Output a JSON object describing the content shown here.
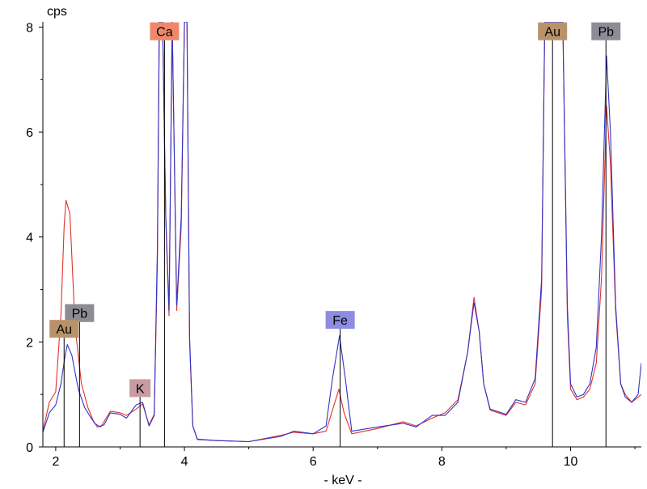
{
  "chart_data": {
    "type": "line",
    "title": "",
    "xlabel": "- keV -",
    "ylabel": "cps",
    "xlim": [
      1.8,
      11.1
    ],
    "ylim": [
      0,
      8.1
    ],
    "x_ticks": [
      2,
      4,
      6,
      8,
      10
    ],
    "y_ticks": [
      0,
      2,
      4,
      6,
      8
    ],
    "grid": false,
    "series": [
      {
        "color": "#e0302a",
        "points": [
          [
            1.8,
            0.3
          ],
          [
            1.9,
            0.85
          ],
          [
            2.0,
            1.05
          ],
          [
            2.08,
            2.5
          ],
          [
            2.13,
            4.2
          ],
          [
            2.16,
            4.7
          ],
          [
            2.22,
            4.45
          ],
          [
            2.3,
            2.3
          ],
          [
            2.4,
            1.2
          ],
          [
            2.5,
            0.75
          ],
          [
            2.6,
            0.45
          ],
          [
            2.7,
            0.38
          ],
          [
            2.85,
            0.68
          ],
          [
            3.0,
            0.65
          ],
          [
            3.1,
            0.6
          ],
          [
            3.25,
            0.72
          ],
          [
            3.35,
            0.82
          ],
          [
            3.45,
            0.42
          ],
          [
            3.53,
            0.62
          ],
          [
            3.58,
            3.5
          ],
          [
            3.61,
            8.1
          ],
          [
            3.66,
            8.1
          ],
          [
            3.71,
            4.3
          ],
          [
            3.76,
            2.5
          ],
          [
            3.81,
            8.1
          ],
          [
            3.88,
            2.6
          ],
          [
            3.95,
            4.2
          ],
          [
            4.0,
            8.1
          ],
          [
            4.04,
            8.1
          ],
          [
            4.08,
            2.0
          ],
          [
            4.13,
            0.4
          ],
          [
            4.2,
            0.15
          ],
          [
            4.5,
            0.12
          ],
          [
            5.0,
            0.1
          ],
          [
            5.5,
            0.22
          ],
          [
            5.7,
            0.28
          ],
          [
            6.0,
            0.25
          ],
          [
            6.2,
            0.3
          ],
          [
            6.3,
            0.7
          ],
          [
            6.4,
            1.1
          ],
          [
            6.48,
            0.65
          ],
          [
            6.6,
            0.25
          ],
          [
            7.0,
            0.35
          ],
          [
            7.4,
            0.48
          ],
          [
            7.6,
            0.4
          ],
          [
            7.85,
            0.55
          ],
          [
            8.05,
            0.65
          ],
          [
            8.25,
            0.9
          ],
          [
            8.4,
            1.8
          ],
          [
            8.5,
            2.85
          ],
          [
            8.58,
            2.2
          ],
          [
            8.65,
            1.2
          ],
          [
            8.75,
            0.7
          ],
          [
            9.0,
            0.6
          ],
          [
            9.15,
            0.85
          ],
          [
            9.3,
            0.8
          ],
          [
            9.45,
            1.2
          ],
          [
            9.55,
            3.0
          ],
          [
            9.6,
            8.1
          ],
          [
            9.88,
            8.1
          ],
          [
            9.95,
            2.5
          ],
          [
            10.0,
            1.1
          ],
          [
            10.1,
            0.9
          ],
          [
            10.2,
            0.95
          ],
          [
            10.3,
            1.1
          ],
          [
            10.4,
            1.6
          ],
          [
            10.48,
            3.2
          ],
          [
            10.56,
            6.5
          ],
          [
            10.62,
            5.4
          ],
          [
            10.7,
            2.6
          ],
          [
            10.78,
            1.2
          ],
          [
            10.85,
            1.0
          ],
          [
            10.95,
            0.85
          ],
          [
            11.05,
            0.95
          ],
          [
            11.1,
            1.0
          ]
        ]
      },
      {
        "color": "#3232c8",
        "points": [
          [
            1.8,
            0.28
          ],
          [
            1.9,
            0.65
          ],
          [
            2.0,
            0.8
          ],
          [
            2.08,
            1.2
          ],
          [
            2.14,
            1.7
          ],
          [
            2.18,
            1.95
          ],
          [
            2.25,
            1.75
          ],
          [
            2.35,
            1.1
          ],
          [
            2.45,
            0.75
          ],
          [
            2.55,
            0.55
          ],
          [
            2.65,
            0.38
          ],
          [
            2.75,
            0.42
          ],
          [
            2.85,
            0.65
          ],
          [
            3.0,
            0.62
          ],
          [
            3.1,
            0.55
          ],
          [
            3.25,
            0.8
          ],
          [
            3.35,
            0.85
          ],
          [
            3.45,
            0.4
          ],
          [
            3.53,
            0.6
          ],
          [
            3.58,
            3.8
          ],
          [
            3.61,
            8.1
          ],
          [
            3.66,
            8.1
          ],
          [
            3.71,
            4.4
          ],
          [
            3.76,
            2.6
          ],
          [
            3.81,
            8.1
          ],
          [
            3.88,
            2.7
          ],
          [
            3.95,
            4.4
          ],
          [
            4.0,
            8.1
          ],
          [
            4.04,
            8.1
          ],
          [
            4.08,
            2.1
          ],
          [
            4.13,
            0.4
          ],
          [
            4.2,
            0.14
          ],
          [
            4.5,
            0.12
          ],
          [
            5.0,
            0.1
          ],
          [
            5.5,
            0.2
          ],
          [
            5.7,
            0.3
          ],
          [
            6.0,
            0.25
          ],
          [
            6.2,
            0.4
          ],
          [
            6.3,
            1.3
          ],
          [
            6.41,
            2.12
          ],
          [
            6.5,
            1.3
          ],
          [
            6.6,
            0.3
          ],
          [
            7.0,
            0.38
          ],
          [
            7.4,
            0.45
          ],
          [
            7.6,
            0.38
          ],
          [
            7.85,
            0.6
          ],
          [
            8.05,
            0.6
          ],
          [
            8.25,
            0.85
          ],
          [
            8.4,
            1.8
          ],
          [
            8.5,
            2.75
          ],
          [
            8.58,
            2.2
          ],
          [
            8.65,
            1.2
          ],
          [
            8.75,
            0.72
          ],
          [
            9.0,
            0.62
          ],
          [
            9.15,
            0.9
          ],
          [
            9.3,
            0.85
          ],
          [
            9.45,
            1.3
          ],
          [
            9.55,
            3.2
          ],
          [
            9.6,
            8.1
          ],
          [
            9.88,
            8.1
          ],
          [
            9.95,
            2.7
          ],
          [
            10.0,
            1.2
          ],
          [
            10.1,
            0.95
          ],
          [
            10.2,
            1.0
          ],
          [
            10.3,
            1.2
          ],
          [
            10.4,
            1.9
          ],
          [
            10.48,
            4.0
          ],
          [
            10.56,
            7.45
          ],
          [
            10.62,
            6.0
          ],
          [
            10.7,
            2.7
          ],
          [
            10.78,
            1.2
          ],
          [
            10.85,
            0.95
          ],
          [
            10.95,
            0.85
          ],
          [
            11.05,
            1.0
          ],
          [
            11.1,
            1.6
          ]
        ]
      }
    ],
    "markers": [
      {
        "text": "Ca",
        "x": 3.69,
        "y": 7.92,
        "line_x": 3.69,
        "color": "#f0876a"
      },
      {
        "text": "Au",
        "x": 9.72,
        "y": 7.92,
        "line_x": 9.72,
        "color": "#b8936a"
      },
      {
        "text": "Pb",
        "x": 10.55,
        "y": 7.92,
        "line_x": 10.55,
        "color": "#8c8c96"
      },
      {
        "text": "Pb",
        "x": 2.37,
        "y": 2.55,
        "line_x": 2.37,
        "color": "#8c8c96"
      },
      {
        "text": "Au",
        "x": 2.13,
        "y": 2.25,
        "line_x": 2.13,
        "color": "#b8936a"
      },
      {
        "text": "Fe",
        "x": 6.42,
        "y": 2.42,
        "line_x": 6.42,
        "color": "#8c8ce0"
      },
      {
        "text": "K",
        "x": 3.31,
        "y": 1.12,
        "line_x": 3.31,
        "color": "#c89ca0"
      }
    ]
  }
}
